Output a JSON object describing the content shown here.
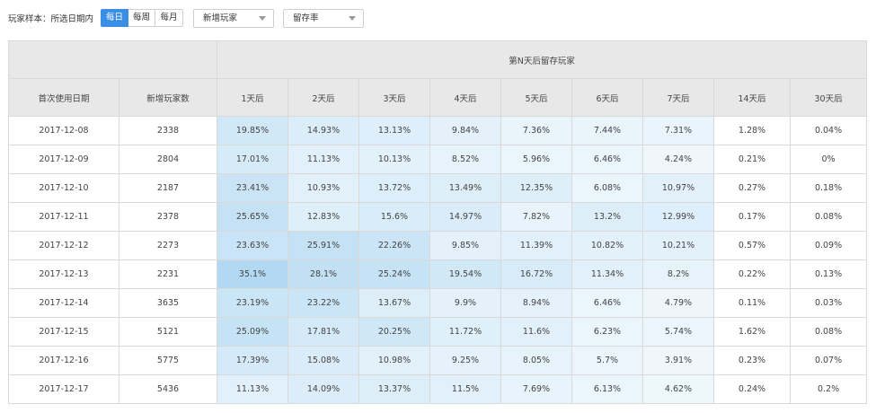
{
  "toolbar": {
    "sample_label": "玩家样本：所选日期内",
    "period_buttons": [
      {
        "label": "每日",
        "active": true
      },
      {
        "label": "每周",
        "active": false
      },
      {
        "label": "每月",
        "active": false
      }
    ],
    "player_type_select": "新增玩家",
    "metric_select": "留存率",
    "active_color": "#3a8ee6"
  },
  "table": {
    "group_header": "第N天后留存玩家",
    "headers": {
      "date": "首次使用日期",
      "new_players": "新增玩家数",
      "days": [
        "1天后",
        "2天后",
        "3天后",
        "4天后",
        "5天后",
        "6天后",
        "7天后",
        "14天后",
        "30天后"
      ]
    },
    "rows": [
      {
        "date": "2017-12-08",
        "new": "2338",
        "values": [
          "19.85%",
          "14.93%",
          "13.13%",
          "9.84%",
          "7.36%",
          "7.44%",
          "7.31%",
          "1.28%",
          "0.04%"
        ]
      },
      {
        "date": "2017-12-09",
        "new": "2804",
        "values": [
          "17.01%",
          "11.13%",
          "10.13%",
          "8.52%",
          "5.96%",
          "6.46%",
          "4.24%",
          "0.21%",
          "0%"
        ]
      },
      {
        "date": "2017-12-10",
        "new": "2187",
        "values": [
          "23.41%",
          "10.93%",
          "13.72%",
          "13.49%",
          "12.35%",
          "6.08%",
          "10.97%",
          "0.27%",
          "0.18%"
        ]
      },
      {
        "date": "2017-12-11",
        "new": "2378",
        "values": [
          "25.65%",
          "12.83%",
          "15.6%",
          "14.97%",
          "7.82%",
          "13.2%",
          "12.99%",
          "0.17%",
          "0.08%"
        ]
      },
      {
        "date": "2017-12-12",
        "new": "2273",
        "values": [
          "23.63%",
          "25.91%",
          "22.26%",
          "9.85%",
          "11.39%",
          "10.82%",
          "10.21%",
          "0.57%",
          "0.09%"
        ]
      },
      {
        "date": "2017-12-13",
        "new": "2231",
        "values": [
          "35.1%",
          "28.1%",
          "25.24%",
          "19.54%",
          "16.72%",
          "11.34%",
          "8.2%",
          "0.22%",
          "0.13%"
        ]
      },
      {
        "date": "2017-12-14",
        "new": "3635",
        "values": [
          "23.19%",
          "23.22%",
          "13.67%",
          "9.9%",
          "8.94%",
          "6.46%",
          "4.79%",
          "0.11%",
          "0.03%"
        ]
      },
      {
        "date": "2017-12-15",
        "new": "5121",
        "values": [
          "25.09%",
          "17.81%",
          "20.25%",
          "11.72%",
          "11.6%",
          "6.23%",
          "5.74%",
          "1.62%",
          "0.08%"
        ]
      },
      {
        "date": "2017-12-16",
        "new": "5775",
        "values": [
          "17.39%",
          "15.08%",
          "10.98%",
          "9.25%",
          "8.05%",
          "5.7%",
          "3.91%",
          "0.23%",
          "0.07%"
        ]
      },
      {
        "date": "2017-12-17",
        "new": "5436",
        "values": [
          "11.13%",
          "14.09%",
          "13.37%",
          "11.5%",
          "7.69%",
          "6.13%",
          "4.62%",
          "0.24%",
          "0.2%"
        ]
      }
    ],
    "heat_color": "#b3d9f2"
  }
}
